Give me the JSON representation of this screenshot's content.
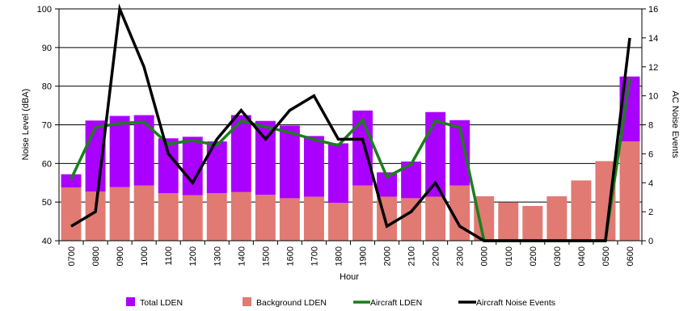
{
  "chart_data": {
    "type": "bar",
    "xlabel": "Hour",
    "ylabel": "Noise Level (dBA)",
    "y2label": "AC Noise Events",
    "ylim": [
      40,
      100
    ],
    "yticks": [
      40,
      50,
      60,
      70,
      80,
      90,
      100
    ],
    "y2lim": [
      0,
      16
    ],
    "y2ticks": [
      0,
      2,
      4,
      6,
      8,
      10,
      12,
      14,
      16
    ],
    "grid": "horizontal",
    "legend_position": "bottom",
    "categories": [
      "0700",
      "0800",
      "0900",
      "1000",
      "1100",
      "1200",
      "1300",
      "1400",
      "1500",
      "1600",
      "1700",
      "1800",
      "1900",
      "2000",
      "2100",
      "2200",
      "2300",
      "0000",
      "0100",
      "0200",
      "0300",
      "0400",
      "0500",
      "0600"
    ],
    "series": [
      {
        "name": "Total LDEN",
        "kind": "bar",
        "axis": "left",
        "color": "#aa00ff",
        "values": [
          57.2,
          71.1,
          72.3,
          72.5,
          66.5,
          66.9,
          65.7,
          72.5,
          71.0,
          69.8,
          67.1,
          65.2,
          73.7,
          57.7,
          60.5,
          73.3,
          71.2,
          51.5,
          49.9,
          49.0,
          51.5,
          55.6,
          60.6,
          82.5
        ]
      },
      {
        "name": "Background LDEN",
        "kind": "bar",
        "axis": "left",
        "color": "#e07a73",
        "values": [
          53.8,
          52.7,
          53.9,
          54.3,
          52.3,
          51.8,
          52.3,
          52.6,
          51.9,
          51.0,
          51.4,
          49.8,
          54.3,
          51.4,
          51.0,
          51.4,
          54.3,
          51.5,
          49.9,
          49.0,
          51.5,
          55.6,
          60.6,
          65.7
        ]
      },
      {
        "name": "Aircraft LDEN",
        "kind": "line",
        "axis": "left",
        "color": "#1a7f1a",
        "values": [
          56.0,
          69.3,
          70.4,
          70.7,
          65.0,
          66.0,
          64.7,
          71.0,
          69.5,
          68.0,
          66.2,
          64.7,
          71.2,
          56.5,
          59.8,
          71.0,
          69.3,
          40.0,
          40.0,
          40.0,
          40.0,
          40.0,
          40.0,
          82.0
        ]
      },
      {
        "name": "Aircraft Noise Events",
        "kind": "line",
        "axis": "right",
        "color": "#000000",
        "values": [
          1,
          2,
          16,
          12,
          6,
          4,
          7,
          9,
          7,
          9,
          10,
          7,
          7,
          1,
          2,
          4,
          1,
          0,
          0,
          0,
          0,
          0,
          0,
          14
        ]
      }
    ]
  }
}
